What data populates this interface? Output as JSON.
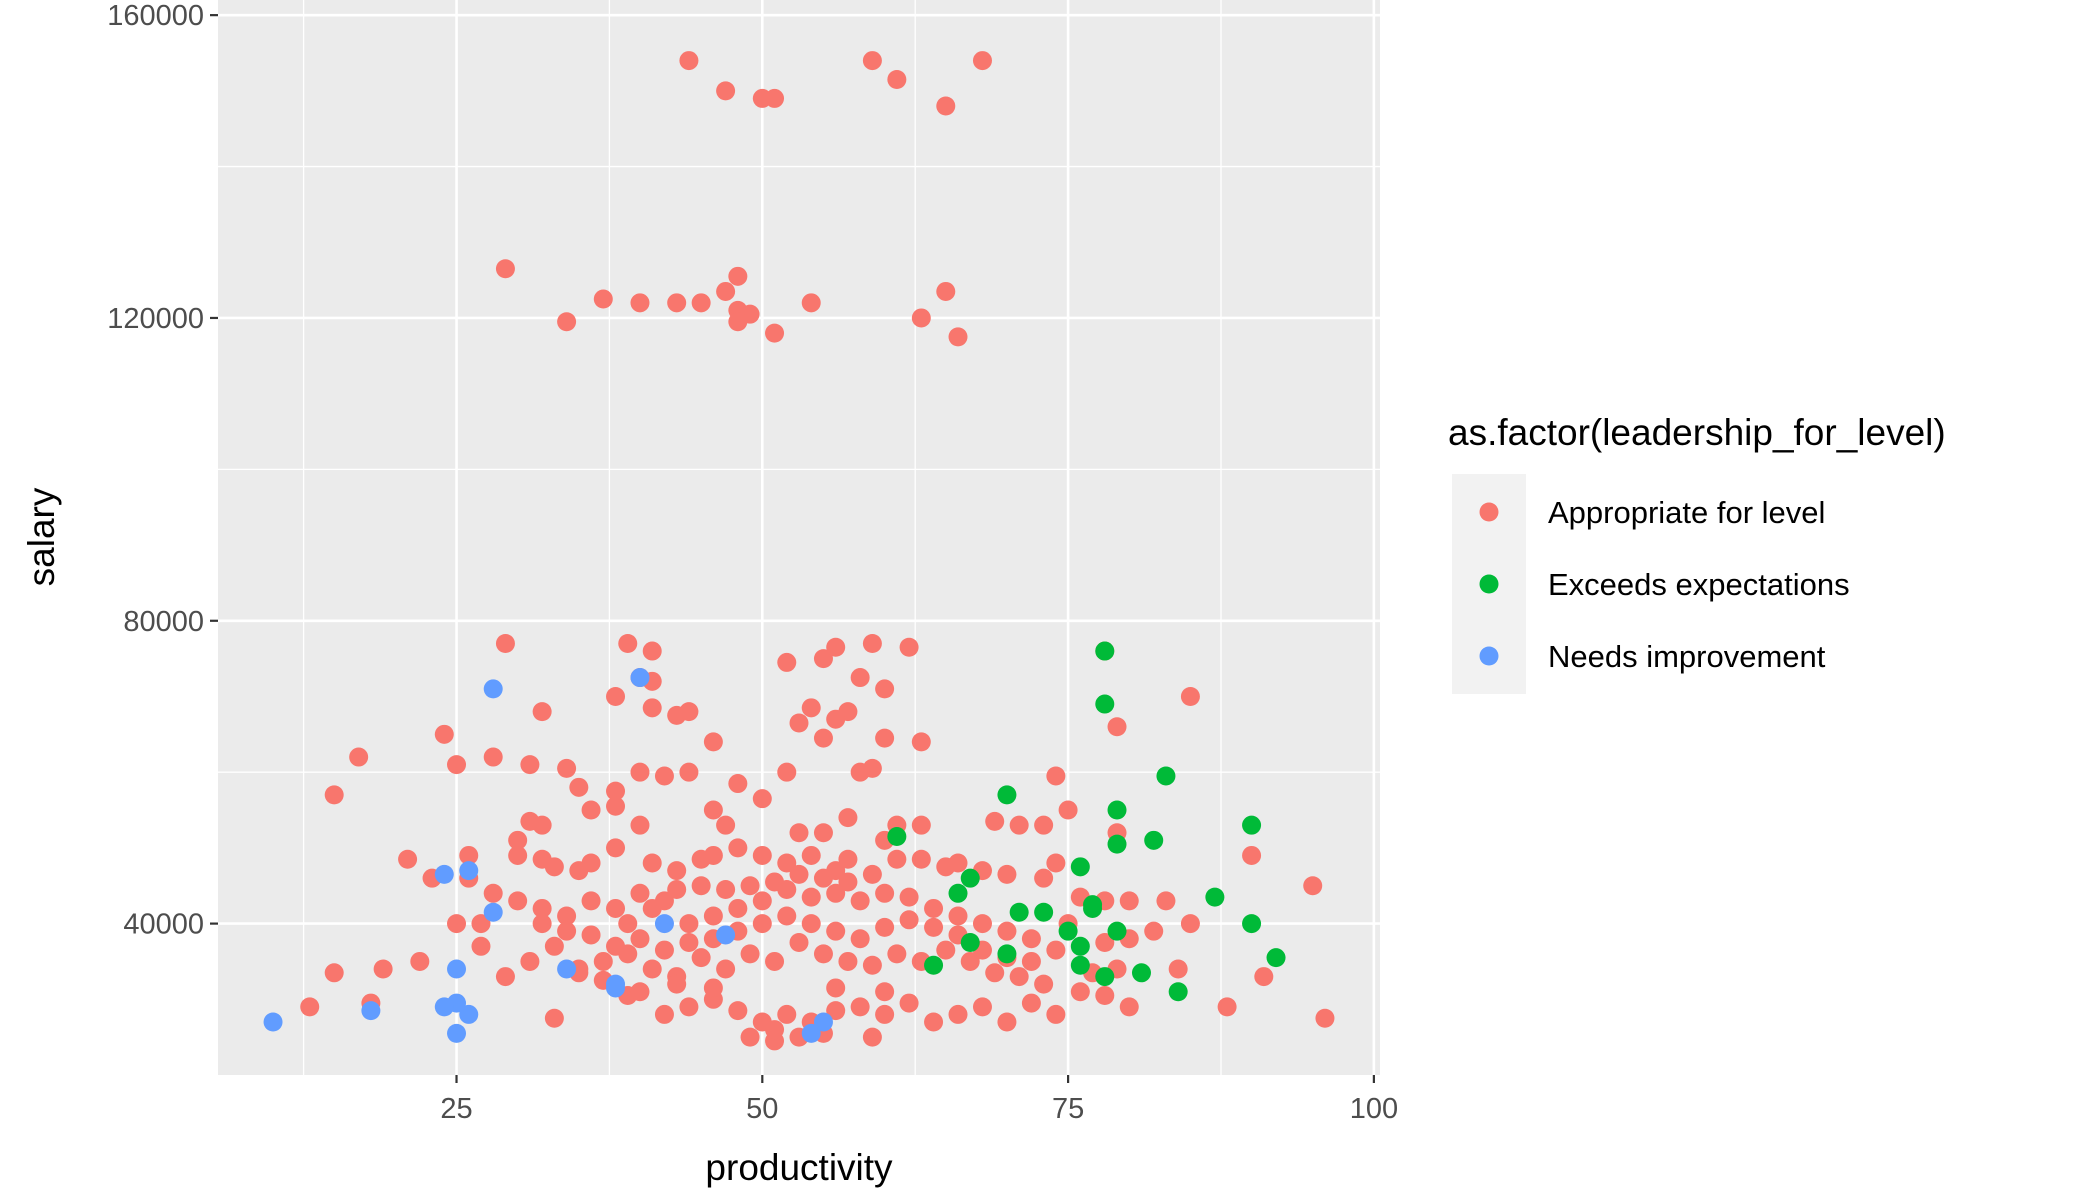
{
  "colors": {
    "panel_background": "#ebebeb",
    "grid": "#ffffff",
    "Appropriate for level": "#F8766D",
    "Exceeds expectations": "#00BA38",
    "Needs improvement": "#619CFF"
  },
  "chart_data": {
    "type": "scatter",
    "title": "",
    "xlabel": "productivity",
    "ylabel": "salary",
    "xlim": [
      5.5,
      100.5
    ],
    "ylim": [
      20000,
      162000
    ],
    "x_ticks": [
      25,
      50,
      75,
      100
    ],
    "x_tick_labels": [
      "25",
      "50",
      "75",
      "100"
    ],
    "y_ticks": [
      40000,
      80000,
      120000,
      160000
    ],
    "y_tick_labels": [
      "40000",
      "80000",
      "120000",
      "160000"
    ],
    "grid": true,
    "legend": {
      "title": "as.factor(leadership_for_level)",
      "placement": "right",
      "entries": [
        "Appropriate for level",
        "Exceeds expectations",
        "Needs improvement"
      ]
    },
    "series": [
      {
        "name": "Appropriate for level",
        "points": [
          [
            44,
            154000
          ],
          [
            47,
            150000
          ],
          [
            50,
            149000
          ],
          [
            51,
            149000
          ],
          [
            59,
            154000
          ],
          [
            61,
            151500
          ],
          [
            65,
            148000
          ],
          [
            68,
            154000
          ],
          [
            29,
            126500
          ],
          [
            37,
            122500
          ],
          [
            40,
            122000
          ],
          [
            43,
            122000
          ],
          [
            45,
            122000
          ],
          [
            47,
            123500
          ],
          [
            48,
            125500
          ],
          [
            48,
            121000
          ],
          [
            49,
            120500
          ],
          [
            48,
            119500
          ],
          [
            34,
            119500
          ],
          [
            51,
            118000
          ],
          [
            54,
            122000
          ],
          [
            63,
            120000
          ],
          [
            65,
            123500
          ],
          [
            66,
            117500
          ],
          [
            29,
            77000
          ],
          [
            39,
            77000
          ],
          [
            41,
            76000
          ],
          [
            40,
            72500
          ],
          [
            41,
            72000
          ],
          [
            55,
            75000
          ],
          [
            56,
            76500
          ],
          [
            59,
            77000
          ],
          [
            62,
            76500
          ],
          [
            60,
            71000
          ],
          [
            52,
            74500
          ],
          [
            58,
            72500
          ],
          [
            54,
            68500
          ],
          [
            57,
            68000
          ],
          [
            56,
            67000
          ],
          [
            53,
            66500
          ],
          [
            55,
            64500
          ],
          [
            60,
            64500
          ],
          [
            63,
            64000
          ],
          [
            78,
            76000
          ],
          [
            79,
            66000
          ],
          [
            85,
            70000
          ],
          [
            38,
            70000
          ],
          [
            32,
            68000
          ],
          [
            41,
            68500
          ],
          [
            43,
            67500
          ],
          [
            44,
            68000
          ],
          [
            46,
            64000
          ],
          [
            24,
            65000
          ],
          [
            17,
            62000
          ],
          [
            15,
            57000
          ],
          [
            25,
            61000
          ],
          [
            28,
            62000
          ],
          [
            31,
            61000
          ],
          [
            34,
            60500
          ],
          [
            35,
            58000
          ],
          [
            38,
            57500
          ],
          [
            40,
            60000
          ],
          [
            42,
            59500
          ],
          [
            44,
            60000
          ],
          [
            48,
            58500
          ],
          [
            50,
            56500
          ],
          [
            52,
            60000
          ],
          [
            59,
            60500
          ],
          [
            58,
            60000
          ],
          [
            74,
            59500
          ],
          [
            36,
            55000
          ],
          [
            38,
            55500
          ],
          [
            40,
            53000
          ],
          [
            31,
            53500
          ],
          [
            32,
            53000
          ],
          [
            46,
            55000
          ],
          [
            47,
            53000
          ],
          [
            53,
            52000
          ],
          [
            55,
            52000
          ],
          [
            57,
            54000
          ],
          [
            60,
            51000
          ],
          [
            61,
            53000
          ],
          [
            63,
            53000
          ],
          [
            69,
            53500
          ],
          [
            71,
            53000
          ],
          [
            73,
            53000
          ],
          [
            75,
            55000
          ],
          [
            79,
            52000
          ],
          [
            90,
            49000
          ],
          [
            95,
            45000
          ],
          [
            21,
            48500
          ],
          [
            23,
            46000
          ],
          [
            26,
            46000
          ],
          [
            26,
            49000
          ],
          [
            30,
            51000
          ],
          [
            30,
            49000
          ],
          [
            32,
            48500
          ],
          [
            33,
            47500
          ],
          [
            35,
            47000
          ],
          [
            36,
            48000
          ],
          [
            38,
            50000
          ],
          [
            41,
            48000
          ],
          [
            43,
            47000
          ],
          [
            45,
            48500
          ],
          [
            46,
            49000
          ],
          [
            48,
            50000
          ],
          [
            50,
            49000
          ],
          [
            52,
            48000
          ],
          [
            54,
            49000
          ],
          [
            56,
            47000
          ],
          [
            57,
            48500
          ],
          [
            59,
            46500
          ],
          [
            61,
            48500
          ],
          [
            63,
            48500
          ],
          [
            65,
            47500
          ],
          [
            66,
            48000
          ],
          [
            68,
            47000
          ],
          [
            70,
            46500
          ],
          [
            73,
            46000
          ],
          [
            74,
            48000
          ],
          [
            76,
            43500
          ],
          [
            78,
            43000
          ],
          [
            80,
            43000
          ],
          [
            83,
            43000
          ],
          [
            85,
            40000
          ],
          [
            82,
            39000
          ],
          [
            80,
            38000
          ],
          [
            78,
            37500
          ],
          [
            75,
            40000
          ],
          [
            72,
            38000
          ],
          [
            70,
            39000
          ],
          [
            68,
            40000
          ],
          [
            66,
            41000
          ],
          [
            64,
            42000
          ],
          [
            62,
            43500
          ],
          [
            60,
            44000
          ],
          [
            58,
            43000
          ],
          [
            56,
            44000
          ],
          [
            54,
            43500
          ],
          [
            52,
            44500
          ],
          [
            50,
            43000
          ],
          [
            48,
            42000
          ],
          [
            46,
            41000
          ],
          [
            44,
            40000
          ],
          [
            42,
            43000
          ],
          [
            40,
            44000
          ],
          [
            38,
            42000
          ],
          [
            36,
            43000
          ],
          [
            34,
            41000
          ],
          [
            32,
            42000
          ],
          [
            30,
            43000
          ],
          [
            28,
            44000
          ],
          [
            27,
            40000
          ],
          [
            25,
            40000
          ],
          [
            22,
            35000
          ],
          [
            19,
            34000
          ],
          [
            15,
            33500
          ],
          [
            13,
            29000
          ],
          [
            18,
            29500
          ],
          [
            27,
            37000
          ],
          [
            29,
            33000
          ],
          [
            31,
            35000
          ],
          [
            33,
            37000
          ],
          [
            35,
            34000
          ],
          [
            37,
            35000
          ],
          [
            39,
            36000
          ],
          [
            41,
            34000
          ],
          [
            43,
            33000
          ],
          [
            45,
            35500
          ],
          [
            47,
            34000
          ],
          [
            49,
            36000
          ],
          [
            51,
            35000
          ],
          [
            53,
            37500
          ],
          [
            55,
            36000
          ],
          [
            57,
            35000
          ],
          [
            59,
            34500
          ],
          [
            61,
            36000
          ],
          [
            63,
            35000
          ],
          [
            65,
            36500
          ],
          [
            67,
            35000
          ],
          [
            69,
            33500
          ],
          [
            71,
            33000
          ],
          [
            73,
            32000
          ],
          [
            76,
            31000
          ],
          [
            78,
            30500
          ],
          [
            80,
            29000
          ],
          [
            84,
            34000
          ],
          [
            88,
            29000
          ],
          [
            91,
            33000
          ],
          [
            96,
            27500
          ],
          [
            33,
            27500
          ],
          [
            39,
            30500
          ],
          [
            42,
            28000
          ],
          [
            44,
            29000
          ],
          [
            46,
            30000
          ],
          [
            48,
            28500
          ],
          [
            50,
            27000
          ],
          [
            52,
            28000
          ],
          [
            54,
            27000
          ],
          [
            56,
            28500
          ],
          [
            58,
            29000
          ],
          [
            60,
            28000
          ],
          [
            62,
            29500
          ],
          [
            64,
            27000
          ],
          [
            66,
            28000
          ],
          [
            68,
            29000
          ],
          [
            70,
            27000
          ],
          [
            72,
            29500
          ],
          [
            74,
            28000
          ],
          [
            49,
            25000
          ],
          [
            51,
            24500
          ],
          [
            53,
            25000
          ],
          [
            59,
            25000
          ],
          [
            51,
            26000
          ],
          [
            55,
            25500
          ],
          [
            60,
            31000
          ],
          [
            56,
            31500
          ],
          [
            46,
            31500
          ],
          [
            43,
            32000
          ],
          [
            40,
            31000
          ],
          [
            37,
            32500
          ],
          [
            35,
            33500
          ],
          [
            32,
            40000
          ],
          [
            34,
            39000
          ],
          [
            36,
            38500
          ],
          [
            38,
            37000
          ],
          [
            40,
            38000
          ],
          [
            42,
            36500
          ],
          [
            44,
            37500
          ],
          [
            46,
            38000
          ],
          [
            48,
            39000
          ],
          [
            50,
            40000
          ],
          [
            52,
            41000
          ],
          [
            54,
            40000
          ],
          [
            56,
            39000
          ],
          [
            58,
            38000
          ],
          [
            60,
            39500
          ],
          [
            62,
            40500
          ],
          [
            64,
            39500
          ],
          [
            66,
            38500
          ],
          [
            68,
            36500
          ],
          [
            70,
            35500
          ],
          [
            72,
            35000
          ],
          [
            74,
            36500
          ],
          [
            77,
            33500
          ],
          [
            79,
            34000
          ],
          [
            55,
            46000
          ],
          [
            57,
            45500
          ],
          [
            53,
            46500
          ],
          [
            51,
            45500
          ],
          [
            49,
            45000
          ],
          [
            47,
            44500
          ],
          [
            45,
            45000
          ],
          [
            43,
            44500
          ],
          [
            41,
            42000
          ],
          [
            39,
            40000
          ]
        ]
      },
      {
        "name": "Exceeds expectations",
        "points": [
          [
            78,
            76000
          ],
          [
            78,
            69000
          ],
          [
            70,
            57000
          ],
          [
            83,
            59500
          ],
          [
            79,
            55000
          ],
          [
            90,
            53000
          ],
          [
            79,
            50500
          ],
          [
            82,
            51000
          ],
          [
            61,
            51500
          ],
          [
            76,
            47500
          ],
          [
            67,
            46000
          ],
          [
            66,
            44000
          ],
          [
            87,
            43500
          ],
          [
            71,
            41500
          ],
          [
            73,
            41500
          ],
          [
            77,
            42500
          ],
          [
            90,
            40000
          ],
          [
            79,
            39000
          ],
          [
            75,
            39000
          ],
          [
            67,
            37500
          ],
          [
            76,
            37000
          ],
          [
            70,
            36000
          ],
          [
            92,
            35500
          ],
          [
            64,
            34500
          ],
          [
            76,
            34500
          ],
          [
            78,
            33000
          ],
          [
            81,
            33500
          ],
          [
            84,
            31000
          ],
          [
            77,
            42000
          ]
        ]
      },
      {
        "name": "Needs improvement",
        "points": [
          [
            28,
            71000
          ],
          [
            40,
            72500
          ],
          [
            24,
            46500
          ],
          [
            26,
            47000
          ],
          [
            28,
            41500
          ],
          [
            34,
            34000
          ],
          [
            25,
            34000
          ],
          [
            38,
            31500
          ],
          [
            47,
            38500
          ],
          [
            42,
            40000
          ],
          [
            25,
            29500
          ],
          [
            24,
            29000
          ],
          [
            26,
            28000
          ],
          [
            18,
            28500
          ],
          [
            10,
            27000
          ],
          [
            25,
            25500
          ],
          [
            54,
            25500
          ],
          [
            55,
            27000
          ],
          [
            38,
            32000
          ]
        ]
      }
    ]
  }
}
